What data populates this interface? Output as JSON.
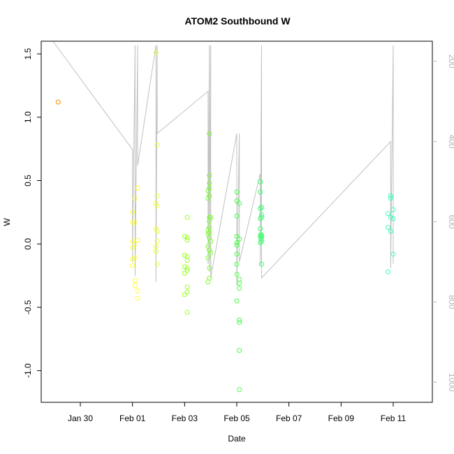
{
  "chart_data": {
    "type": "scatter",
    "title": "ATOM2 Southbound W",
    "xlabel": "Date",
    "ylabel": "W",
    "x_unit": "days",
    "xlim": [
      "2024-01-28T12:00",
      "2024-02-12T12:00"
    ],
    "ylim": [
      -1.25,
      1.6
    ],
    "x_ticks": [
      {
        "x": "2024-01-30",
        "label": "Jan 30"
      },
      {
        "x": "2024-02-01",
        "label": "Feb 01"
      },
      {
        "x": "2024-02-03",
        "label": "Feb 03"
      },
      {
        "x": "2024-02-05",
        "label": "Feb 05"
      },
      {
        "x": "2024-02-07",
        "label": "Feb 07"
      },
      {
        "x": "2024-02-09",
        "label": "Feb 09"
      },
      {
        "x": "2024-02-11",
        "label": "Feb 11"
      }
    ],
    "y_ticks": [
      -1.0,
      -0.5,
      0.0,
      0.5,
      1.0,
      1.5
    ],
    "y_tick_labels": [
      "-1.0",
      "-0.5",
      "0.0",
      "0.5",
      "1.0",
      "1.5"
    ],
    "right_axis": {
      "ylim": [
        1050,
        150
      ],
      "ticks": [
        200,
        400,
        600,
        800,
        1000
      ],
      "tick_labels": [
        "200",
        "400",
        "600",
        "800",
        "1000"
      ],
      "color": "#b3b3b3"
    },
    "grid": false,
    "point_style": "open-circle",
    "color_scale": "time-gradient orange-yellow-green-cyan",
    "points": [
      {
        "x": "2024-01-29T03:36",
        "y": 1.12,
        "color": "#ff8c00"
      },
      {
        "x": "2024-02-01T00:00",
        "y": 0.25,
        "color": "#ffff33"
      },
      {
        "x": "2024-02-01T00:00",
        "y": 0.17,
        "color": "#ffff33"
      },
      {
        "x": "2024-02-01T00:00",
        "y": 0.02,
        "color": "#ffff33"
      },
      {
        "x": "2024-02-01T00:00",
        "y": -0.03,
        "color": "#ffff33"
      },
      {
        "x": "2024-02-01T00:00",
        "y": -0.12,
        "color": "#ffff33"
      },
      {
        "x": "2024-02-01T00:00",
        "y": -0.17,
        "color": "#ffff33"
      },
      {
        "x": "2024-02-01T02:24",
        "y": 0.36,
        "color": "#ffff33"
      },
      {
        "x": "2024-02-01T02:24",
        "y": 0.17,
        "color": "#ffff33"
      },
      {
        "x": "2024-02-01T02:24",
        "y": 0.0,
        "color": "#ffff33"
      },
      {
        "x": "2024-02-01T02:24",
        "y": -0.11,
        "color": "#ffff33"
      },
      {
        "x": "2024-02-01T02:24",
        "y": -0.29,
        "color": "#ffff33"
      },
      {
        "x": "2024-02-01T02:24",
        "y": -0.33,
        "color": "#ffff33"
      },
      {
        "x": "2024-02-01T04:48",
        "y": 0.44,
        "color": "#ffff33"
      },
      {
        "x": "2024-02-01T04:48",
        "y": 0.03,
        "color": "#ffff33"
      },
      {
        "x": "2024-02-01T04:48",
        "y": -0.37,
        "color": "#ffff33"
      },
      {
        "x": "2024-02-01T04:48",
        "y": -0.43,
        "color": "#ffff33"
      },
      {
        "x": "2024-02-01T21:36",
        "y": 1.51,
        "color": "#eaff33"
      },
      {
        "x": "2024-02-01T21:36",
        "y": 0.32,
        "color": "#eaff33"
      },
      {
        "x": "2024-02-01T21:36",
        "y": 0.12,
        "color": "#eaff33"
      },
      {
        "x": "2024-02-01T21:36",
        "y": -0.02,
        "color": "#eaff33"
      },
      {
        "x": "2024-02-01T21:36",
        "y": -0.06,
        "color": "#eaff33"
      },
      {
        "x": "2024-02-01T22:48",
        "y": 0.78,
        "color": "#eaff33"
      },
      {
        "x": "2024-02-01T22:48",
        "y": 0.38,
        "color": "#eaff33"
      },
      {
        "x": "2024-02-01T22:48",
        "y": 0.3,
        "color": "#eaff33"
      },
      {
        "x": "2024-02-01T22:48",
        "y": 0.1,
        "color": "#eaff33"
      },
      {
        "x": "2024-02-01T22:48",
        "y": 0.02,
        "color": "#eaff33"
      },
      {
        "x": "2024-02-01T22:48",
        "y": -0.16,
        "color": "#eaff33"
      },
      {
        "x": "2024-02-03T00:00",
        "y": 0.06,
        "color": "#99ff22"
      },
      {
        "x": "2024-02-03T00:00",
        "y": -0.09,
        "color": "#99ff22"
      },
      {
        "x": "2024-02-03T00:00",
        "y": -0.18,
        "color": "#99ff22"
      },
      {
        "x": "2024-02-03T00:00",
        "y": -0.23,
        "color": "#99ff22"
      },
      {
        "x": "2024-02-03T00:00",
        "y": -0.4,
        "color": "#99ff22"
      },
      {
        "x": "2024-02-03T02:24",
        "y": 0.21,
        "color": "#99ff22"
      },
      {
        "x": "2024-02-03T02:24",
        "y": 0.05,
        "color": "#99ff22"
      },
      {
        "x": "2024-02-03T02:24",
        "y": 0.03,
        "color": "#99ff22"
      },
      {
        "x": "2024-02-03T02:24",
        "y": -0.1,
        "color": "#99ff22"
      },
      {
        "x": "2024-02-03T02:24",
        "y": -0.13,
        "color": "#99ff22"
      },
      {
        "x": "2024-02-03T02:24",
        "y": -0.19,
        "color": "#99ff22"
      },
      {
        "x": "2024-02-03T02:24",
        "y": -0.21,
        "color": "#99ff22"
      },
      {
        "x": "2024-02-03T02:24",
        "y": -0.34,
        "color": "#99ff22"
      },
      {
        "x": "2024-02-03T02:24",
        "y": -0.38,
        "color": "#99ff22"
      },
      {
        "x": "2024-02-03T02:24",
        "y": -0.54,
        "color": "#99ff22"
      },
      {
        "x": "2024-02-03T21:36",
        "y": 0.42,
        "color": "#77ff22"
      },
      {
        "x": "2024-02-03T21:36",
        "y": 0.36,
        "color": "#77ff22"
      },
      {
        "x": "2024-02-03T21:36",
        "y": 0.11,
        "color": "#77ff22"
      },
      {
        "x": "2024-02-03T21:36",
        "y": 0.08,
        "color": "#77ff22"
      },
      {
        "x": "2024-02-03T21:36",
        "y": -0.02,
        "color": "#77ff22"
      },
      {
        "x": "2024-02-03T21:36",
        "y": -0.11,
        "color": "#77ff22"
      },
      {
        "x": "2024-02-03T21:36",
        "y": -0.3,
        "color": "#77ff22"
      },
      {
        "x": "2024-02-03T22:48",
        "y": 0.87,
        "color": "#77ff22"
      },
      {
        "x": "2024-02-03T22:48",
        "y": 0.54,
        "color": "#77ff22"
      },
      {
        "x": "2024-02-03T22:48",
        "y": 0.48,
        "color": "#77ff22"
      },
      {
        "x": "2024-02-03T22:48",
        "y": 0.44,
        "color": "#77ff22"
      },
      {
        "x": "2024-02-03T22:48",
        "y": 0.38,
        "color": "#77ff22"
      },
      {
        "x": "2024-02-03T22:48",
        "y": 0.21,
        "color": "#77ff22"
      },
      {
        "x": "2024-02-03T22:48",
        "y": 0.18,
        "color": "#77ff22"
      },
      {
        "x": "2024-02-03T22:48",
        "y": 0.13,
        "color": "#77ff22"
      },
      {
        "x": "2024-02-03T22:48",
        "y": 0.09,
        "color": "#77ff22"
      },
      {
        "x": "2024-02-03T22:48",
        "y": 0.05,
        "color": "#77ff22"
      },
      {
        "x": "2024-02-03T22:48",
        "y": -0.05,
        "color": "#77ff22"
      },
      {
        "x": "2024-02-03T22:48",
        "y": -0.19,
        "color": "#77ff22"
      },
      {
        "x": "2024-02-03T22:48",
        "y": -0.27,
        "color": "#77ff22"
      },
      {
        "x": "2024-02-04T00:00",
        "y": 0.21,
        "color": "#77ff22"
      },
      {
        "x": "2024-02-04T00:00",
        "y": 0.02,
        "color": "#77ff22"
      },
      {
        "x": "2024-02-04T00:00",
        "y": -0.07,
        "color": "#77ff22"
      },
      {
        "x": "2024-02-05T00:00",
        "y": 0.41,
        "color": "#44ff44"
      },
      {
        "x": "2024-02-05T00:00",
        "y": 0.34,
        "color": "#44ff44"
      },
      {
        "x": "2024-02-05T00:00",
        "y": 0.22,
        "color": "#44ff44"
      },
      {
        "x": "2024-02-05T00:00",
        "y": 0.06,
        "color": "#44ff44"
      },
      {
        "x": "2024-02-05T00:00",
        "y": 0.01,
        "color": "#44ff44"
      },
      {
        "x": "2024-02-05T00:00",
        "y": -0.01,
        "color": "#44ff44"
      },
      {
        "x": "2024-02-05T00:00",
        "y": -0.08,
        "color": "#44ff44"
      },
      {
        "x": "2024-02-05T00:00",
        "y": -0.16,
        "color": "#44ff44"
      },
      {
        "x": "2024-02-05T00:00",
        "y": -0.24,
        "color": "#44ff44"
      },
      {
        "x": "2024-02-05T00:00",
        "y": -0.45,
        "color": "#44ff44"
      },
      {
        "x": "2024-02-05T02:24",
        "y": 0.32,
        "color": "#44ff44"
      },
      {
        "x": "2024-02-05T02:24",
        "y": 0.04,
        "color": "#44ff44"
      },
      {
        "x": "2024-02-05T02:24",
        "y": -0.28,
        "color": "#44ff44"
      },
      {
        "x": "2024-02-05T02:24",
        "y": -0.31,
        "color": "#44ff44"
      },
      {
        "x": "2024-02-05T02:24",
        "y": -0.35,
        "color": "#44ff44"
      },
      {
        "x": "2024-02-05T02:24",
        "y": -0.6,
        "color": "#44ff44"
      },
      {
        "x": "2024-02-05T02:24",
        "y": -0.62,
        "color": "#44ff44"
      },
      {
        "x": "2024-02-05T02:24",
        "y": -0.84,
        "color": "#44ff44"
      },
      {
        "x": "2024-02-05T02:24",
        "y": -1.15,
        "color": "#44ff44"
      },
      {
        "x": "2024-02-05T21:36",
        "y": 0.49,
        "color": "#33ff66"
      },
      {
        "x": "2024-02-05T21:36",
        "y": 0.41,
        "color": "#33ff66"
      },
      {
        "x": "2024-02-05T21:36",
        "y": 0.28,
        "color": "#33ff66"
      },
      {
        "x": "2024-02-05T21:36",
        "y": 0.2,
        "color": "#33ff66"
      },
      {
        "x": "2024-02-05T21:36",
        "y": 0.12,
        "color": "#33ff66"
      },
      {
        "x": "2024-02-05T21:36",
        "y": 0.07,
        "color": "#33ff66"
      },
      {
        "x": "2024-02-05T21:36",
        "y": 0.05,
        "color": "#33ff66"
      },
      {
        "x": "2024-02-05T21:36",
        "y": 0.01,
        "color": "#33ff66"
      },
      {
        "x": "2024-02-05T22:48",
        "y": 0.29,
        "color": "#33ff66"
      },
      {
        "x": "2024-02-05T22:48",
        "y": 0.23,
        "color": "#33ff66"
      },
      {
        "x": "2024-02-05T22:48",
        "y": 0.21,
        "color": "#33ff66"
      },
      {
        "x": "2024-02-05T22:48",
        "y": 0.07,
        "color": "#33ff66"
      },
      {
        "x": "2024-02-05T22:48",
        "y": 0.06,
        "color": "#33ff66"
      },
      {
        "x": "2024-02-05T22:48",
        "y": 0.04,
        "color": "#33ff66"
      },
      {
        "x": "2024-02-05T22:48",
        "y": 0.02,
        "color": "#33ff66"
      },
      {
        "x": "2024-02-05T22:48",
        "y": -0.16,
        "color": "#33ff66"
      },
      {
        "x": "2024-02-10T19:12",
        "y": 0.24,
        "color": "#33ffbb"
      },
      {
        "x": "2024-02-10T19:12",
        "y": 0.13,
        "color": "#33ffbb"
      },
      {
        "x": "2024-02-10T19:12",
        "y": -0.22,
        "color": "#33ffbb"
      },
      {
        "x": "2024-02-10T21:36",
        "y": 0.38,
        "color": "#33ffbb"
      },
      {
        "x": "2024-02-10T21:36",
        "y": 0.36,
        "color": "#33ffbb"
      },
      {
        "x": "2024-02-10T21:36",
        "y": 0.21,
        "color": "#33ffbb"
      },
      {
        "x": "2024-02-10T21:36",
        "y": 0.1,
        "color": "#33ffbb"
      },
      {
        "x": "2024-02-11T00:00",
        "y": 0.27,
        "color": "#33ffbb"
      },
      {
        "x": "2024-02-11T00:00",
        "y": 0.2,
        "color": "#33ffbb"
      },
      {
        "x": "2024-02-11T00:00",
        "y": -0.08,
        "color": "#33ffbb"
      }
    ],
    "depth_trace": {
      "axis": "right",
      "color": "#c0c0c0",
      "x": [
        "2024-01-28T22:48",
        "2024-02-01T00:00",
        "2024-02-01T00:00",
        "2024-02-01T02:24",
        "2024-02-01T02:24",
        "2024-02-01T04:48",
        "2024-02-01T04:48",
        "2024-02-01T21:36",
        "2024-02-01T21:36",
        "2024-02-01T22:48",
        "2024-02-01T22:48",
        "2024-02-03T21:36",
        "2024-02-03T21:36",
        "2024-02-03T22:48",
        "2024-02-03T22:48",
        "2024-02-04T00:00",
        "2024-02-04T00:00",
        "2024-02-05T00:00",
        "2024-02-05T00:00",
        "2024-02-05T02:24",
        "2024-02-05T02:24",
        "2024-02-05T21:36",
        "2024-02-05T21:36",
        "2024-02-05T22:48",
        "2024-02-05T22:48",
        "2024-02-10T21:36",
        "2024-02-10T21:36",
        "2024-02-11T00:00",
        "2024-02-11T00:00"
      ],
      "y": [
        150,
        420,
        700,
        160,
        735,
        160,
        460,
        160,
        750,
        160,
        380,
        275,
        705,
        160,
        725,
        160,
        740,
        380,
        760,
        380,
        700,
        480,
        710,
        160,
        740,
        400,
        715,
        160,
        705
      ]
    }
  }
}
